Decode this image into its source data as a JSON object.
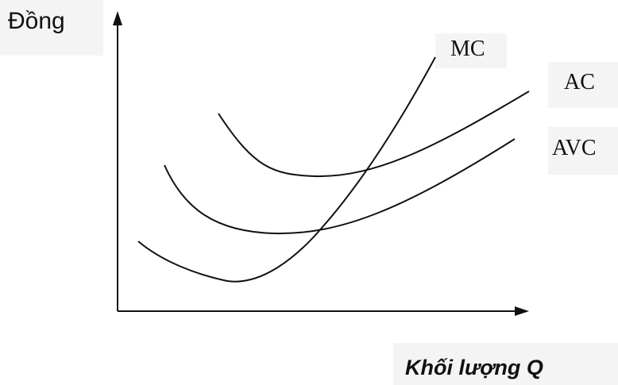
{
  "chart_data": {
    "type": "line",
    "ylabel": "Đồng",
    "xlabel": "Khối lượng Q",
    "series": [
      {
        "name": "MC"
      },
      {
        "name": "AC"
      },
      {
        "name": "AVC"
      }
    ],
    "colors": {
      "line": "#111111",
      "label_bg": "#f4f4f4"
    }
  }
}
